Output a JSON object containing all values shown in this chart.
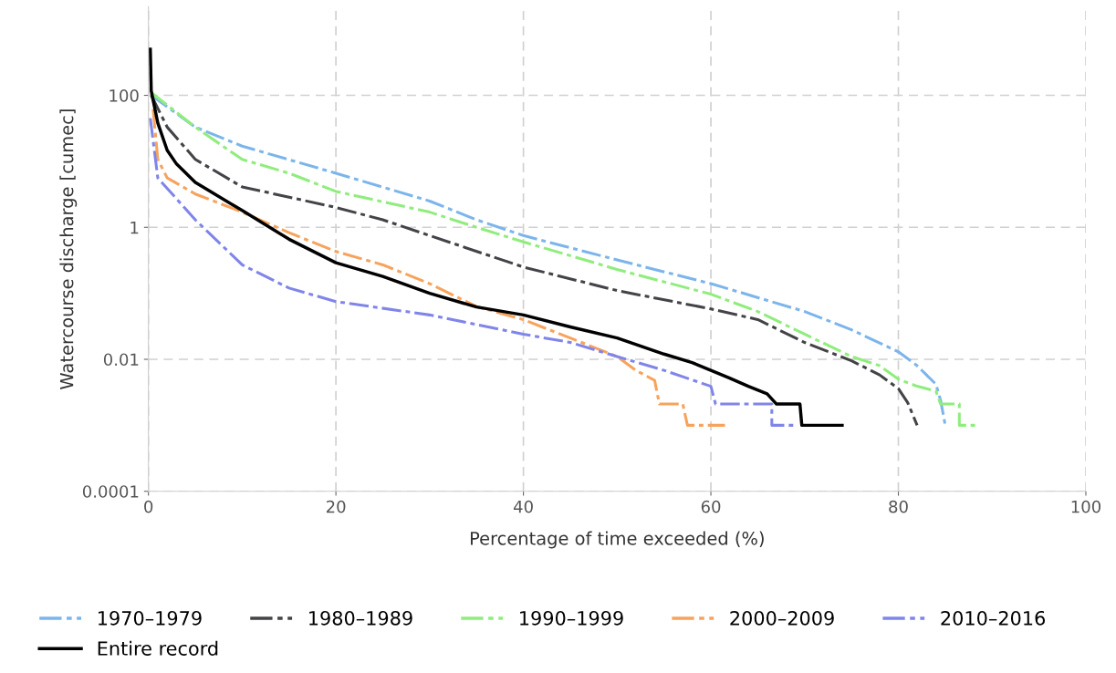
{
  "chart_data": {
    "type": "line",
    "xlabel": "Percentage of time exceeded (%)",
    "ylabel": "Watercourse discharge [cumec]",
    "log": "y",
    "grid": true,
    "legend": "bottom",
    "xlim": [
      0,
      100
    ],
    "xticks": [
      0,
      20,
      40,
      60,
      80,
      100
    ],
    "ylim": [
      0.0001,
      2200
    ],
    "yticks": [
      {
        "value": 0.0001,
        "label": "0.0001"
      },
      {
        "value": 0.01,
        "label": "0.01"
      },
      {
        "value": 1,
        "label": "1"
      },
      {
        "value": 100,
        "label": "100"
      }
    ],
    "series": [
      {
        "name": "1970–1979",
        "color": "#7cb5ec",
        "line_style": "dashed",
        "x": [
          0.3,
          5,
          10,
          20,
          30,
          35,
          40,
          50,
          60,
          70,
          75,
          80,
          82,
          84,
          84.5,
          85
        ],
        "values": [
          100,
          33,
          17,
          6.6,
          2.5,
          1.3,
          0.75,
          0.32,
          0.14,
          0.053,
          0.028,
          0.013,
          0.008,
          0.0042,
          0.0024,
          0.001
        ]
      },
      {
        "name": "1980–1989",
        "color": "#434348",
        "line_style": "dashed",
        "x": [
          0.3,
          2,
          5,
          10,
          20,
          25,
          30,
          40,
          50,
          60,
          65,
          70,
          75,
          78,
          80,
          81,
          82
        ],
        "values": [
          100,
          33,
          10.7,
          4.1,
          2,
          1.3,
          0.75,
          0.25,
          0.11,
          0.058,
          0.04,
          0.018,
          0.0095,
          0.0058,
          0.0036,
          0.0022,
          0.001
        ]
      },
      {
        "name": "1990–1999",
        "color": "#90ed7d",
        "line_style": "dashed",
        "x": [
          0.3,
          5,
          10,
          15,
          20,
          30,
          35,
          40,
          50,
          60,
          65,
          70,
          75,
          78,
          80,
          82,
          84,
          84.5,
          86.5,
          86.5,
          88.5
        ],
        "values": [
          110,
          33,
          10.7,
          6.6,
          3.5,
          1.7,
          1,
          0.6,
          0.23,
          0.097,
          0.053,
          0.024,
          0.011,
          0.008,
          0.005,
          0.0039,
          0.0033,
          0.0021,
          0.0021,
          0.001,
          0.001
        ]
      },
      {
        "name": "2000–2009",
        "color": "#f7a35c",
        "line_style": "dashed",
        "x": [
          0.5,
          1,
          2,
          5,
          10,
          15,
          20,
          25,
          30,
          35,
          40,
          45,
          50,
          52,
          54,
          54.5,
          57,
          57.5,
          61.5
        ],
        "values": [
          62,
          10.7,
          5.6,
          3.2,
          1.7,
          0.83,
          0.43,
          0.27,
          0.14,
          0.063,
          0.04,
          0.021,
          0.011,
          0.0068,
          0.0048,
          0.0021,
          0.0021,
          0.001,
          0.001
        ]
      },
      {
        "name": "2010–2016",
        "color": "#8085e9",
        "line_style": "dashed",
        "x": [
          0.2,
          1,
          5,
          10,
          15,
          20,
          30,
          40,
          45,
          50,
          55,
          60,
          60.5,
          66.5,
          66.5,
          69
        ],
        "values": [
          45,
          5.6,
          1.3,
          0.27,
          0.12,
          0.075,
          0.047,
          0.024,
          0.018,
          0.011,
          0.0068,
          0.0039,
          0.0021,
          0.0021,
          0.001,
          0.001
        ]
      },
      {
        "name": "Entire record",
        "color": "#000000",
        "line_style": "solid",
        "x": [
          0.2,
          0.3,
          1,
          2,
          3,
          5,
          10,
          15,
          20,
          25,
          30,
          35,
          40,
          45,
          50,
          55,
          58,
          60,
          62,
          64,
          66,
          67,
          69.5,
          69.7,
          74
        ],
        "values": [
          500,
          117,
          38,
          14.7,
          9.1,
          4.8,
          1.8,
          0.66,
          0.29,
          0.18,
          0.1,
          0.062,
          0.047,
          0.031,
          0.021,
          0.012,
          0.0089,
          0.0068,
          0.0052,
          0.0039,
          0.003,
          0.0021,
          0.0021,
          0.001,
          0.001
        ]
      }
    ]
  }
}
